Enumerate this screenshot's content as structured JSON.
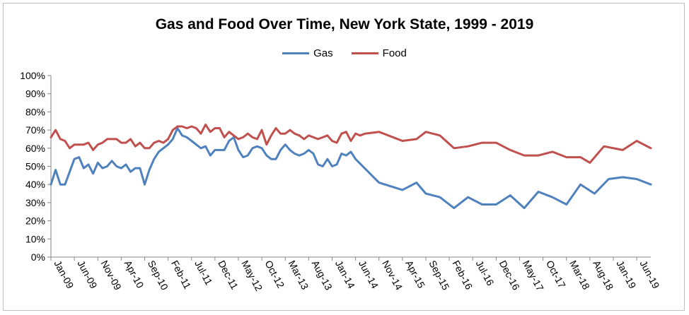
{
  "chart_data": {
    "type": "line",
    "title": "Gas and Food Over Time, New York State, 1999 - 2019",
    "xlabel": "",
    "ylabel": "",
    "ylim": [
      0,
      100
    ],
    "y_ticks": [
      "0%",
      "10%",
      "20%",
      "30%",
      "40%",
      "50%",
      "60%",
      "70%",
      "80%",
      "90%",
      "100%"
    ],
    "x_ticks": [
      "Jan-09",
      "Jun-09",
      "Nov-09",
      "Apr-10",
      "Sep-10",
      "Feb-11",
      "Jul-11",
      "Dec-11",
      "May-12",
      "Oct-12",
      "Mar-13",
      "Aug-13",
      "Jan-14",
      "Jun-14",
      "Nov-14",
      "Apr-15",
      "Sep-15",
      "Feb-16",
      "Jul-16",
      "Dec-16",
      "May-17",
      "Oct-17",
      "Mar-18",
      "Aug-18",
      "Jan-19",
      "Jun-19"
    ],
    "grid": false,
    "legend_position": "top-center",
    "series": [
      {
        "name": "Gas",
        "color": "#4f81bd",
        "points": [
          [
            "Jan-09",
            40
          ],
          [
            "Feb-09",
            48
          ],
          [
            "Mar-09",
            40
          ],
          [
            "Apr-09",
            40
          ],
          [
            "May-09",
            47
          ],
          [
            "Jun-09",
            54
          ],
          [
            "Jul-09",
            55
          ],
          [
            "Aug-09",
            49
          ],
          [
            "Sep-09",
            51
          ],
          [
            "Oct-09",
            46
          ],
          [
            "Nov-09",
            52
          ],
          [
            "Dec-09",
            49
          ],
          [
            "Jan-10",
            50
          ],
          [
            "Feb-10",
            53
          ],
          [
            "Mar-10",
            50
          ],
          [
            "Apr-10",
            49
          ],
          [
            "May-10",
            51
          ],
          [
            "Jun-10",
            47
          ],
          [
            "Jul-10",
            49
          ],
          [
            "Aug-10",
            49
          ],
          [
            "Sep-10",
            40
          ],
          [
            "Oct-10",
            48
          ],
          [
            "Nov-10",
            54
          ],
          [
            "Dec-10",
            58
          ],
          [
            "Jan-11",
            60
          ],
          [
            "Feb-11",
            62
          ],
          [
            "Mar-11",
            65
          ],
          [
            "Apr-11",
            71
          ],
          [
            "May-11",
            67
          ],
          [
            "Jun-11",
            66
          ],
          [
            "Jul-11",
            64
          ],
          [
            "Aug-11",
            62
          ],
          [
            "Sep-11",
            60
          ],
          [
            "Oct-11",
            61
          ],
          [
            "Nov-11",
            56
          ],
          [
            "Dec-11",
            59
          ],
          [
            "Jan-12",
            59
          ],
          [
            "Feb-12",
            59
          ],
          [
            "Mar-12",
            64
          ],
          [
            "Apr-12",
            66
          ],
          [
            "May-12",
            59
          ],
          [
            "Jun-12",
            55
          ],
          [
            "Jul-12",
            56
          ],
          [
            "Aug-12",
            60
          ],
          [
            "Sep-12",
            61
          ],
          [
            "Oct-12",
            60
          ],
          [
            "Nov-12",
            56
          ],
          [
            "Dec-12",
            54
          ],
          [
            "Jan-13",
            54
          ],
          [
            "Feb-13",
            59
          ],
          [
            "Mar-13",
            62
          ],
          [
            "Apr-13",
            59
          ],
          [
            "May-13",
            57
          ],
          [
            "Jun-13",
            56
          ],
          [
            "Jul-13",
            57
          ],
          [
            "Aug-13",
            59
          ],
          [
            "Sep-13",
            57
          ],
          [
            "Oct-13",
            51
          ],
          [
            "Nov-13",
            50
          ],
          [
            "Dec-13",
            54
          ],
          [
            "Jan-14",
            50
          ],
          [
            "Feb-14",
            51
          ],
          [
            "Mar-14",
            57
          ],
          [
            "Apr-14",
            56
          ],
          [
            "May-14",
            58
          ],
          [
            "Jun-14",
            54
          ],
          [
            "Nov-14",
            41
          ],
          [
            "Apr-15",
            37
          ],
          [
            "Jul-15",
            41
          ],
          [
            "Sep-15",
            35
          ],
          [
            "Dec-15",
            33
          ],
          [
            "Mar-16",
            27
          ],
          [
            "Jun-16",
            33
          ],
          [
            "Sep-16",
            29
          ],
          [
            "Dec-16",
            29
          ],
          [
            "Mar-17",
            34
          ],
          [
            "Jun-17",
            27
          ],
          [
            "Sep-17",
            36
          ],
          [
            "Dec-17",
            33
          ],
          [
            "Mar-18",
            29
          ],
          [
            "Jun-18",
            40
          ],
          [
            "Sep-18",
            35
          ],
          [
            "Dec-18",
            43
          ],
          [
            "Mar-19",
            44
          ],
          [
            "Jun-19",
            43
          ],
          [
            "Sep-19",
            40
          ]
        ]
      },
      {
        "name": "Food",
        "color": "#c0504d",
        "points": [
          [
            "Jan-09",
            66
          ],
          [
            "Feb-09",
            70
          ],
          [
            "Mar-09",
            65
          ],
          [
            "Apr-09",
            64
          ],
          [
            "May-09",
            60
          ],
          [
            "Jun-09",
            62
          ],
          [
            "Jul-09",
            62
          ],
          [
            "Aug-09",
            62
          ],
          [
            "Sep-09",
            63
          ],
          [
            "Oct-09",
            59
          ],
          [
            "Nov-09",
            62
          ],
          [
            "Dec-09",
            63
          ],
          [
            "Jan-10",
            65
          ],
          [
            "Feb-10",
            65
          ],
          [
            "Mar-10",
            65
          ],
          [
            "Apr-10",
            63
          ],
          [
            "May-10",
            63
          ],
          [
            "Jun-10",
            65
          ],
          [
            "Jul-10",
            61
          ],
          [
            "Aug-10",
            63
          ],
          [
            "Sep-10",
            60
          ],
          [
            "Oct-10",
            60
          ],
          [
            "Nov-10",
            63
          ],
          [
            "Dec-10",
            64
          ],
          [
            "Jan-11",
            63
          ],
          [
            "Feb-11",
            65
          ],
          [
            "Mar-11",
            70
          ],
          [
            "Apr-11",
            72
          ],
          [
            "May-11",
            72
          ],
          [
            "Jun-11",
            71
          ],
          [
            "Jul-11",
            72
          ],
          [
            "Aug-11",
            71
          ],
          [
            "Sep-11",
            68
          ],
          [
            "Oct-11",
            73
          ],
          [
            "Nov-11",
            69
          ],
          [
            "Dec-11",
            71
          ],
          [
            "Jan-12",
            71
          ],
          [
            "Feb-12",
            66
          ],
          [
            "Mar-12",
            69
          ],
          [
            "Apr-12",
            67
          ],
          [
            "May-12",
            65
          ],
          [
            "Jun-12",
            66
          ],
          [
            "Jul-12",
            68
          ],
          [
            "Aug-12",
            66
          ],
          [
            "Sep-12",
            65
          ],
          [
            "Oct-12",
            70
          ],
          [
            "Nov-12",
            62
          ],
          [
            "Dec-12",
            67
          ],
          [
            "Jan-13",
            71
          ],
          [
            "Feb-13",
            68
          ],
          [
            "Mar-13",
            68
          ],
          [
            "Apr-13",
            70
          ],
          [
            "May-13",
            68
          ],
          [
            "Jun-13",
            67
          ],
          [
            "Jul-13",
            65
          ],
          [
            "Aug-13",
            67
          ],
          [
            "Sep-13",
            66
          ],
          [
            "Oct-13",
            65
          ],
          [
            "Nov-13",
            66
          ],
          [
            "Dec-13",
            67
          ],
          [
            "Jan-14",
            64
          ],
          [
            "Feb-14",
            63
          ],
          [
            "Mar-14",
            68
          ],
          [
            "Apr-14",
            69
          ],
          [
            "May-14",
            64
          ],
          [
            "Jun-14",
            68
          ],
          [
            "Jul-14",
            67
          ],
          [
            "Aug-14",
            68
          ],
          [
            "Nov-14",
            69
          ],
          [
            "Apr-15",
            64
          ],
          [
            "Jul-15",
            65
          ],
          [
            "Sep-15",
            69
          ],
          [
            "Dec-15",
            67
          ],
          [
            "Mar-16",
            60
          ],
          [
            "Jun-16",
            61
          ],
          [
            "Sep-16",
            63
          ],
          [
            "Dec-16",
            63
          ],
          [
            "Mar-17",
            59
          ],
          [
            "Jun-17",
            56
          ],
          [
            "Sep-17",
            56
          ],
          [
            "Dec-17",
            58
          ],
          [
            "Mar-18",
            55
          ],
          [
            "Jun-18",
            55
          ],
          [
            "Aug-18",
            52
          ],
          [
            "Nov-18",
            61
          ],
          [
            "Mar-19",
            59
          ],
          [
            "Jun-19",
            64
          ],
          [
            "Sep-19",
            60
          ]
        ]
      }
    ]
  }
}
